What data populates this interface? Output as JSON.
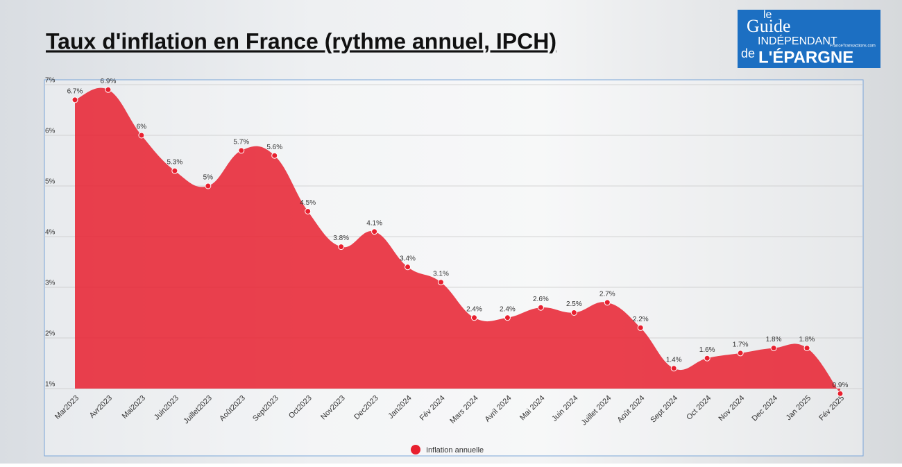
{
  "chart_data": {
    "type": "area",
    "title": "Taux d'inflation en France (rythme annuel, IPCH)",
    "logo": {
      "line1": "le",
      "line2": "Guide",
      "line3": "INDÉPENDANT",
      "line4": "de",
      "line5": "L'ÉPARGNE",
      "site": "FranceTransactions.com"
    },
    "categories": [
      "Mar2023",
      "Avr2023",
      "Mai2023",
      "Juin2023",
      "Juillet2023",
      "Août2023",
      "Sept2023",
      "Oct2023",
      "Nov2023",
      "Dec2023",
      "Jan2024",
      "Fév 2024",
      "Mars 2024",
      "Avril 2024",
      "Mai 2024",
      "Juin 2024",
      "Juillet 2024",
      "Août 2024",
      "Sept 2024",
      "Oct 2024",
      "Nov 2024",
      "Dec 2024",
      "Jan 2025",
      "Fév 2025"
    ],
    "series": [
      {
        "name": "Inflation annuelle",
        "color": "#e8202f",
        "values": [
          6.7,
          6.9,
          6,
          5.3,
          5,
          5.7,
          5.6,
          4.5,
          3.8,
          4.1,
          3.4,
          3.1,
          2.4,
          2.4,
          2.6,
          2.5,
          2.7,
          2.2,
          1.4,
          1.6,
          1.7,
          1.8,
          1.8,
          0.9
        ],
        "value_labels": [
          "6.7%",
          "6.9%",
          "6%",
          "5.3%",
          "5%",
          "5.7%",
          "5.6%",
          "4.5%",
          "3.8%",
          "4.1%",
          "3.4%",
          "3.1%",
          "2.4%",
          "2.4%",
          "2.6%",
          "2.5%",
          "2.7%",
          "2.2%",
          "1.4%",
          "1.6%",
          "1.7%",
          "1.8%",
          "1.8%",
          "0.9%"
        ]
      }
    ],
    "ylim": [
      1,
      7
    ],
    "yticks": [
      {
        "value": 1,
        "label": "1%"
      },
      {
        "value": 2,
        "label": "2%"
      },
      {
        "value": 3,
        "label": "3%"
      },
      {
        "value": 4,
        "label": "4%"
      },
      {
        "value": 5,
        "label": "5%"
      },
      {
        "value": 6,
        "label": "6%"
      },
      {
        "value": 7,
        "label": "7%"
      }
    ],
    "grid": true,
    "legend": "bottom"
  }
}
